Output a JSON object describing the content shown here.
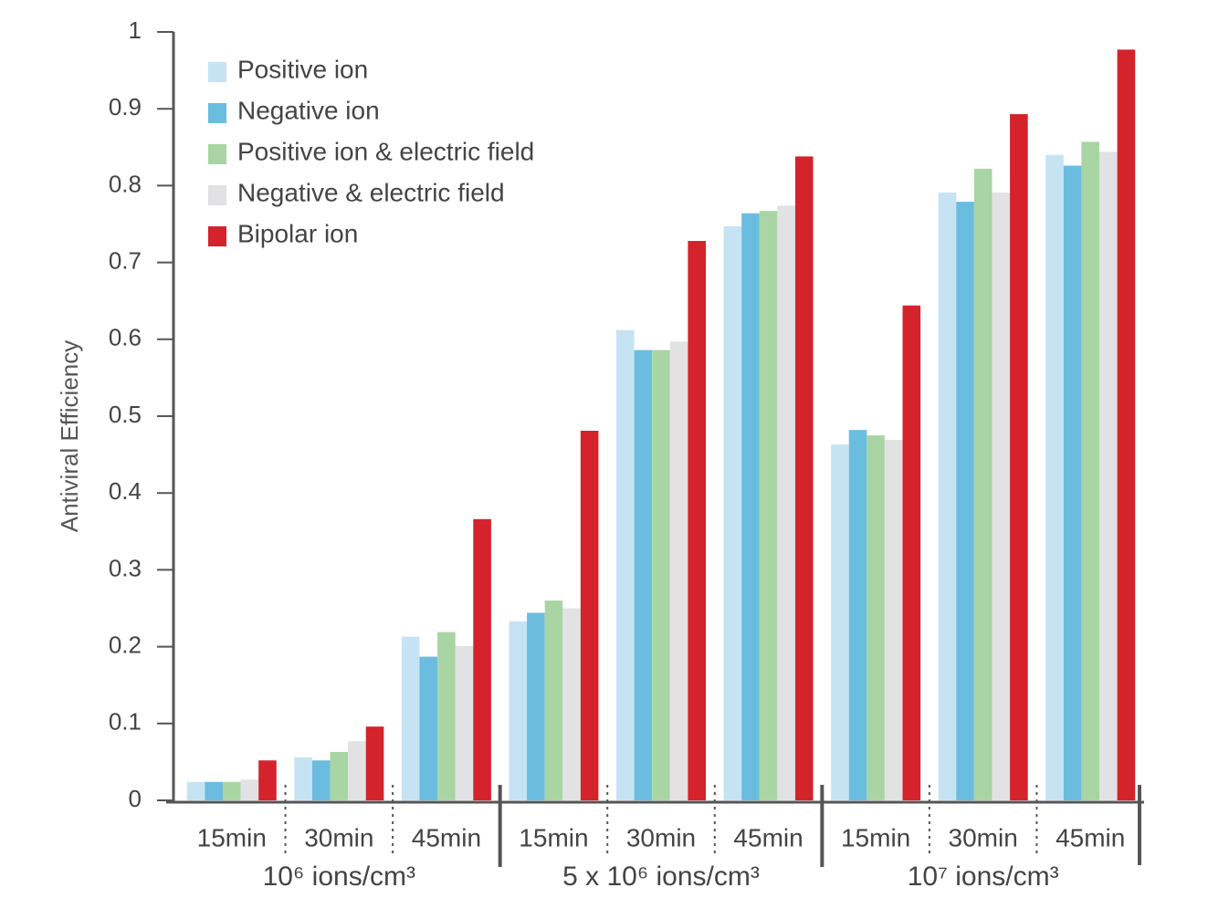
{
  "chart_data": {
    "type": "bar",
    "y_label": "Antiviral Efficiency",
    "categories": [
      "15min",
      "30min",
      "45min",
      "15min",
      "30min",
      "45min",
      "15min",
      "30min",
      "45min"
    ],
    "groups": [
      "10⁶ ions/cm³",
      "5 x 10⁶ ions/cm³",
      "10⁷ ions/cm³"
    ],
    "series": [
      {
        "name": "Positive ion",
        "color": "#c6e3f3",
        "values": [
          0.024,
          0.056,
          0.213,
          0.233,
          0.612,
          0.747,
          0.463,
          0.791,
          0.84
        ]
      },
      {
        "name": "Negative ion",
        "color": "#6bbde0",
        "values": [
          0.024,
          0.052,
          0.187,
          0.244,
          0.586,
          0.764,
          0.482,
          0.779,
          0.826
        ]
      },
      {
        "name": "Positive ion & electric field",
        "color": "#a8d5a3",
        "values": [
          0.024,
          0.063,
          0.219,
          0.26,
          0.586,
          0.767,
          0.475,
          0.822,
          0.857
        ]
      },
      {
        "name": "Negative & electric field",
        "color": "#e2e2e4",
        "values": [
          0.027,
          0.077,
          0.201,
          0.25,
          0.597,
          0.774,
          0.469,
          0.791,
          0.844
        ]
      },
      {
        "name": "Bipolar ion",
        "color": "#d4232b",
        "values": [
          0.052,
          0.096,
          0.366,
          0.481,
          0.728,
          0.838,
          0.644,
          0.893,
          0.977
        ]
      }
    ],
    "ylim": [
      0,
      1
    ],
    "yticks": [
      0,
      0.1,
      0.2,
      0.3,
      0.4,
      0.5,
      0.6,
      0.7,
      0.8,
      0.9,
      1
    ],
    "grid": false
  }
}
